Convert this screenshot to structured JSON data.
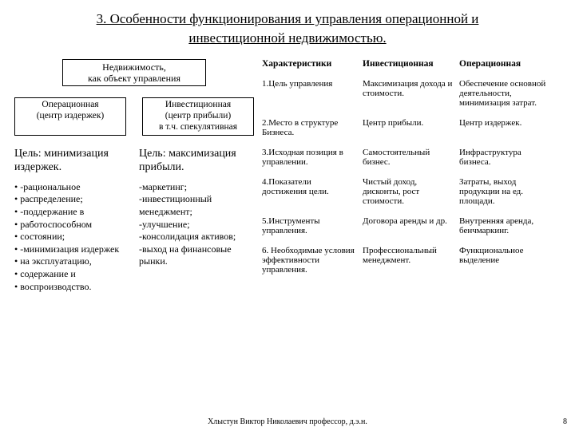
{
  "title_line1": "3. Особенности функционирования и управления операционной и",
  "title_line2": "инвестиционной недвижимостью.",
  "top_box_l1": "Недвижимость,",
  "top_box_l2": "как объект управления",
  "box_left_l1": "Операционная",
  "box_left_l2": "(центр издержек)",
  "box_right_l1": "Инвестиционная",
  "box_right_l2": "(центр прибыли)",
  "box_right_l3": "в т.ч. спекулятивная",
  "goal_left": "Цель: минимизация издержек.",
  "goal_right": "Цель: максимизация прибыли.",
  "bullets_left": [
    "-рациональное",
    "распределение;",
    "-поддержание в",
    "работоспособном",
    "состоянии;",
    "-минимизация издержек",
    "на эксплуатацию,",
    "содержание и",
    "воспроизводство."
  ],
  "list_right": [
    "-маркетинг;",
    "-инвестиционный менеджмент;",
    "-улучшение;",
    "-консолидация активов;",
    "-выход на финансовые рынки."
  ],
  "table": {
    "h1": "Характеристики",
    "h2": "Инвестиционная",
    "h3": "Операционная",
    "r1c1": "1.Цель управления",
    "r1c2": "Максимизация дохода и стоимости.",
    "r1c3": "Обеспечение основной деятельности, минимизация затрат.",
    "r2c1": "2.Место в структуре Бизнеса.",
    "r2c2": "Центр прибыли.",
    "r2c3": "Центр издержек.",
    "r3c1": "3.Исходная позиция в управлении.",
    "r3c2": "Самостоятельный бизнес.",
    "r3c3": "Инфраструктура бизнеса.",
    "r4c1": "4.Показатели достижения цели.",
    "r4c2": "Чистый доход, дисконты, рост стоимости.",
    "r4c3": "Затраты, выход продукции на ед. площади.",
    "r5c1": "5.Инструменты управления.",
    "r5c2": "Договора аренды и др.",
    "r5c3": "Внутренняя аренда, бенчмаркинг.",
    "r6c1": "6. Необходимые условия эффективности управления.",
    "r6c2": "Профессиональный менеджмент.",
    "r6c3": "Функциональное выделение"
  },
  "footer": "Хлыстун Виктор Николаевич профессор, д.э.н.",
  "page": "8"
}
